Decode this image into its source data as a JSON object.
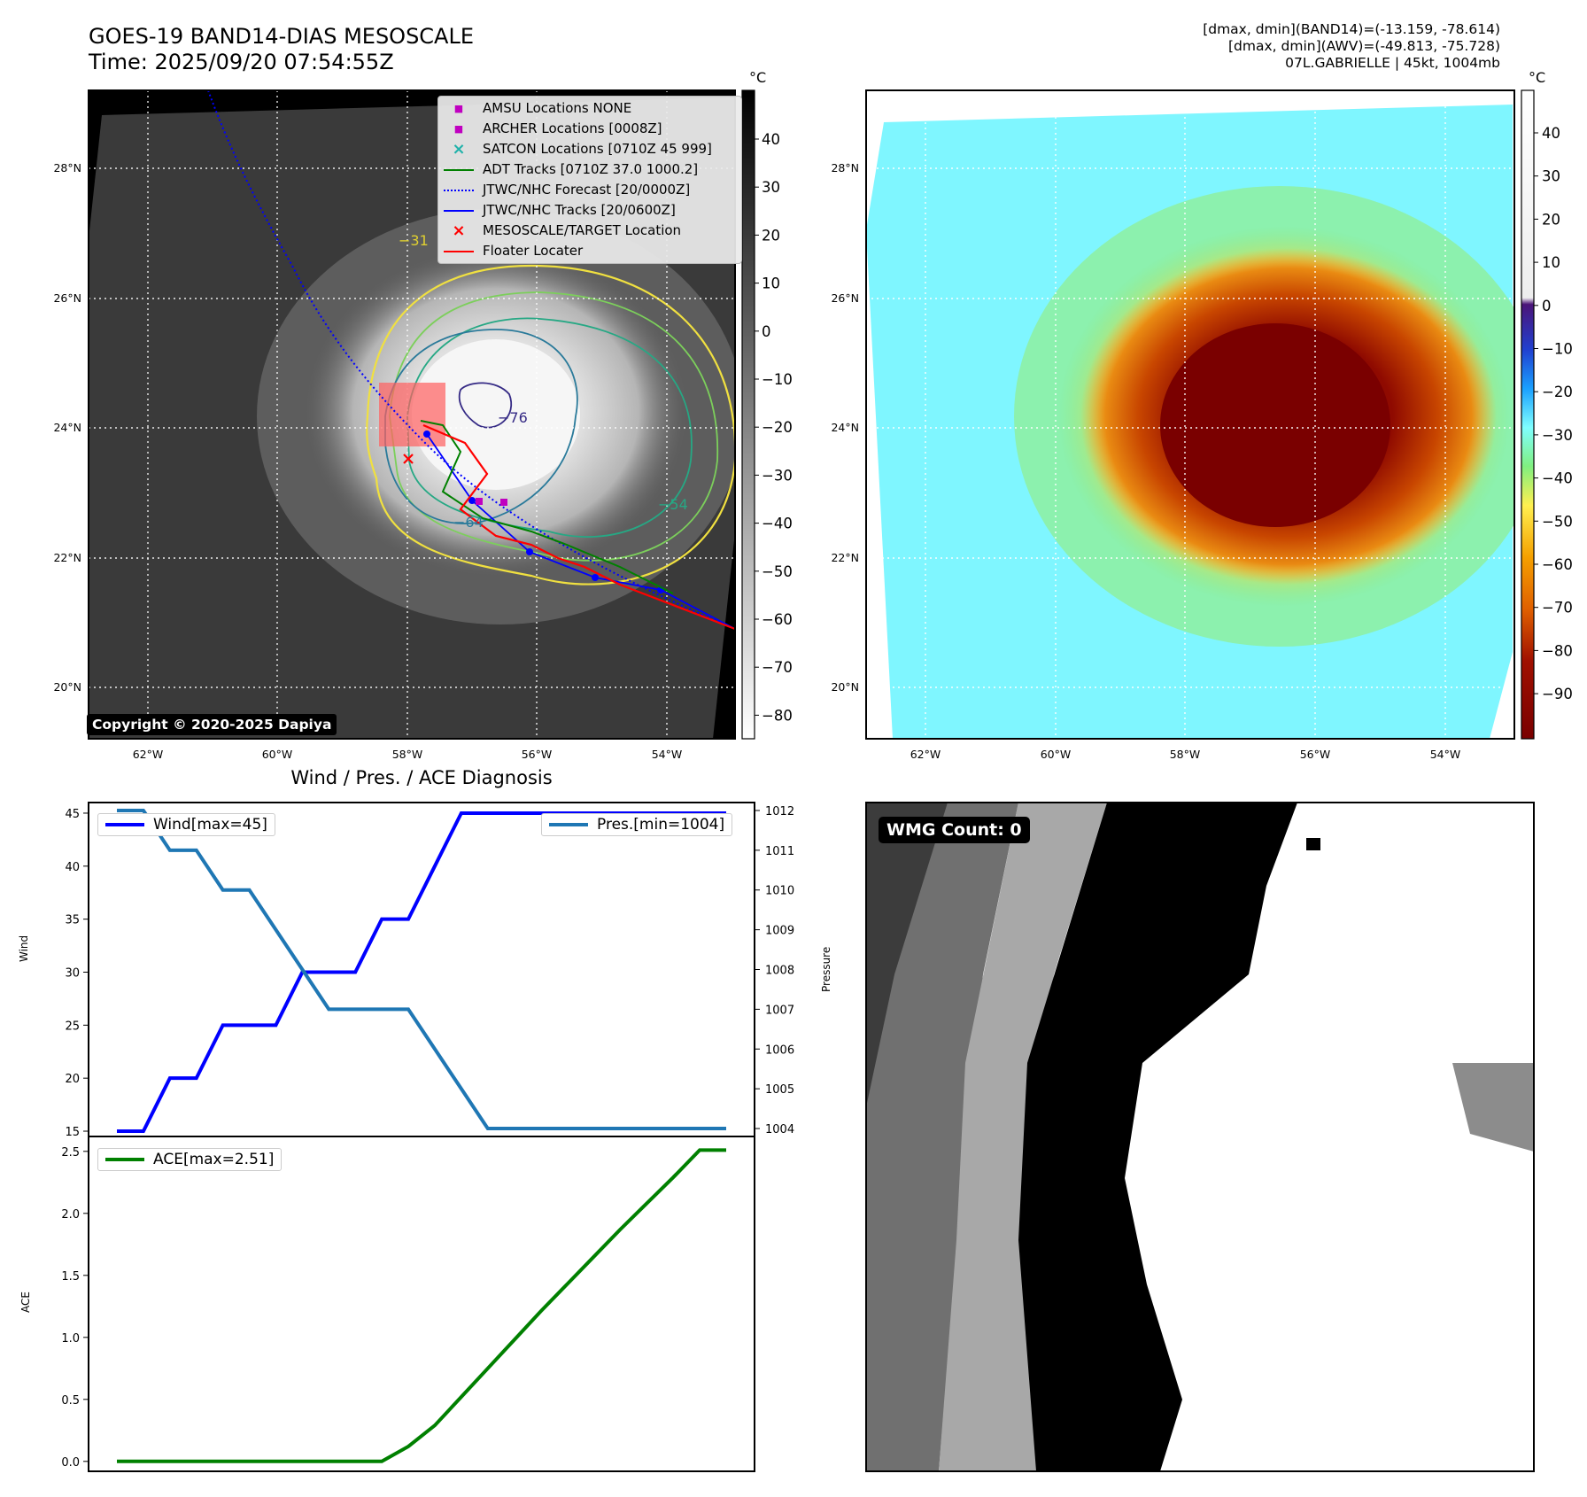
{
  "header": {
    "title_line1": "GOES-19 BAND14-DIAS MESOSCALE",
    "title_line2": "Time: 2025/09/20 07:54:55Z",
    "info_line1": "[dmax, dmin](BAND14)=(-13.159, -78.614)",
    "info_line2": "[dmax, dmin](AWV)=(-49.813, -75.728)",
    "info_line3": "07L.GABRIELLE | 45kt, 1004mb"
  },
  "map_common": {
    "lon_ticks": [
      "62°W",
      "60°W",
      "58°W",
      "56°W",
      "54°W"
    ],
    "lat_ticks": [
      "28°N",
      "26°N",
      "24°N",
      "22°N",
      "20°N"
    ],
    "lon_range": [
      -63.0,
      -53.0
    ],
    "lat_range": [
      19.3,
      29.2
    ]
  },
  "left_map": {
    "colorbar_unit": "°C",
    "colorbar_ticks": [
      "40",
      "30",
      "20",
      "10",
      "0",
      "−10",
      "−20",
      "−30",
      "−40",
      "−50",
      "−60",
      "−70",
      "−80"
    ],
    "contour_labels": [
      "−76",
      "−64",
      "−31",
      "−54"
    ],
    "copyright": "Copyright © 2020-2025 Dapiya",
    "legend": [
      {
        "label": "AMSU Locations NONE",
        "color": "#c000c0",
        "marker": "square"
      },
      {
        "label": "ARCHER Locations [0008Z]",
        "color": "#c000c0",
        "marker": "square"
      },
      {
        "label": "SATCON Locations [0710Z 45 999]",
        "color": "#20b2aa",
        "marker": "x"
      },
      {
        "label": "ADT Tracks [0710Z 37.0 1000.2]",
        "color": "#008000",
        "marker": "line"
      },
      {
        "label": "JTWC/NHC Forecast [20/0000Z]",
        "color": "#0000ff",
        "marker": "dotted"
      },
      {
        "label": "JTWC/NHC Tracks [20/0600Z]",
        "color": "#0000ff",
        "marker": "line-dot"
      },
      {
        "label": "MESOSCALE/TARGET Location",
        "color": "#ff0000",
        "marker": "x"
      },
      {
        "label": "Floater Locater",
        "color": "#ff0000",
        "marker": "line"
      }
    ]
  },
  "right_map": {
    "colorbar_unit": "°C",
    "colorbar_ticks": [
      "40",
      "30",
      "20",
      "10",
      "0",
      "−10",
      "−20",
      "−30",
      "−40",
      "−50",
      "−60",
      "−70",
      "−80",
      "−90"
    ]
  },
  "wmg": {
    "label": "WMG Count: 0"
  },
  "chart_data": [
    {
      "type": "line",
      "title": "Wind / Pres. / ACE Diagnosis",
      "x": [
        0,
        1,
        2,
        3,
        4,
        5,
        6,
        7,
        8,
        9,
        10,
        11,
        12,
        13,
        14,
        15,
        16,
        17,
        18,
        19,
        20,
        21,
        22,
        23
      ],
      "series": [
        {
          "name": "Wind[max=45]",
          "axis": "left",
          "color": "#0000ff",
          "values": [
            15,
            15,
            20,
            20,
            25,
            25,
            25,
            30,
            30,
            30,
            35,
            35,
            40,
            45,
            45,
            45,
            45,
            45,
            45,
            45,
            45,
            45,
            45,
            45
          ]
        },
        {
          "name": "Pres.[min=1004]",
          "axis": "right",
          "color": "#1f77b4",
          "values": [
            1012,
            1012,
            1011,
            1011,
            1010,
            1010,
            1009,
            1008,
            1007,
            1007,
            1007,
            1007,
            1006,
            1005,
            1004,
            1004,
            1004,
            1004,
            1004,
            1004,
            1004,
            1004,
            1004,
            1004
          ]
        }
      ],
      "ylabel": "Wind",
      "y2label": "Pressure",
      "ylim": [
        14.5,
        46
      ],
      "y2lim": [
        1003.8,
        1012.2
      ],
      "yticks": [
        15,
        20,
        25,
        30,
        35,
        40,
        45
      ],
      "y2ticks": [
        1004,
        1005,
        1006,
        1007,
        1008,
        1009,
        1010,
        1011,
        1012
      ],
      "legend": "top"
    },
    {
      "type": "line",
      "x": [
        0,
        1,
        2,
        3,
        4,
        5,
        6,
        7,
        8,
        9,
        10,
        11,
        12,
        13,
        14,
        15,
        16,
        17,
        18,
        19,
        20,
        21,
        22,
        23
      ],
      "series": [
        {
          "name": "ACE[max=2.51]",
          "color": "#008000",
          "values": [
            0,
            0,
            0,
            0,
            0,
            0,
            0,
            0,
            0,
            0,
            0,
            0.12,
            0.29,
            0.52,
            0.75,
            0.98,
            1.21,
            1.43,
            1.65,
            1.87,
            2.08,
            2.29,
            2.51,
            2.51
          ]
        }
      ],
      "ylabel": "ACE",
      "ylim": [
        -0.08,
        2.62
      ],
      "yticks": [
        "0.0",
        "0.5",
        "1.0",
        "1.5",
        "2.0",
        "2.5"
      ],
      "legend": "top-left"
    }
  ]
}
